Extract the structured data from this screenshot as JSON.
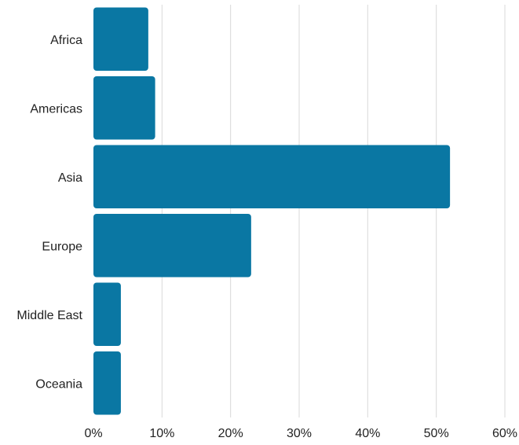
{
  "chart_data": {
    "type": "bar",
    "orientation": "horizontal",
    "categories": [
      "Africa",
      "Americas",
      "Asia",
      "Europe",
      "Middle East",
      "Oceania"
    ],
    "values": [
      8,
      9,
      52,
      23,
      4,
      4
    ],
    "unit": "%",
    "xlim": [
      0,
      60
    ],
    "xticks": [
      "0%",
      "10%",
      "20%",
      "30%",
      "40%",
      "50%",
      "60%"
    ],
    "grid": "vertical",
    "bar_color": "#0a77a3",
    "title": "",
    "xlabel": "",
    "ylabel": ""
  }
}
